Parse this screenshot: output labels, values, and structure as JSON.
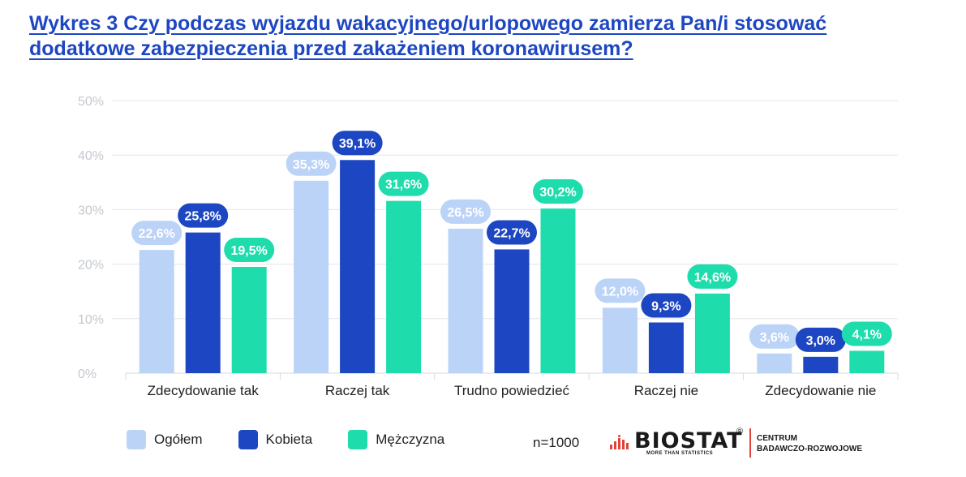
{
  "title": "Wykres 3 Czy podczas wyjazdu wakacyjnego/urlopowego zamierza Pan/i stosować dodatkowe zabezpieczenia przed zakażeniem koronawirusem?",
  "chart_data": {
    "type": "bar",
    "title": "Wykres 3 Czy podczas wyjazdu wakacyjnego/urlopowego zamierza Pan/i stosować dodatkowe zabezpieczenia przed zakażeniem koronawirusem?",
    "xlabel": "",
    "ylabel": "",
    "ylim": [
      0,
      50
    ],
    "yticks": [
      0,
      10,
      20,
      30,
      40,
      50
    ],
    "ytick_labels": [
      "0%",
      "10%",
      "20%",
      "30%",
      "40%",
      "50%"
    ],
    "grid": true,
    "legend_position": "bottom-left",
    "categories": [
      "Zdecydowanie tak",
      "Raczej tak",
      "Trudno powiedzieć",
      "Raczej nie",
      "Zdecydowanie nie"
    ],
    "series": [
      {
        "name": "Ogółem",
        "color": "#bcd3f8",
        "label_color": "#bcd3f8",
        "text_color": "#ffffff",
        "values": [
          22.6,
          35.3,
          26.5,
          12.0,
          3.6
        ],
        "labels": [
          "22,6%",
          "35,3%",
          "26,5%",
          "12,0%",
          "3,6%"
        ]
      },
      {
        "name": "Kobieta",
        "color": "#1d46c3",
        "label_color": "#1d46c3",
        "text_color": "#ffffff",
        "values": [
          25.8,
          39.1,
          22.7,
          9.3,
          3.0
        ],
        "labels": [
          "25,8%",
          "39,1%",
          "22,7%",
          "9,3%",
          "3,0%"
        ]
      },
      {
        "name": "Mężczyzna",
        "color": "#1fdcac",
        "label_color": "#1fdcac",
        "text_color": "#ffffff",
        "values": [
          19.5,
          31.6,
          30.2,
          14.6,
          4.1
        ],
        "labels": [
          "19,5%",
          "31,6%",
          "30,2%",
          "14,6%",
          "4,1%"
        ]
      }
    ]
  },
  "footer": {
    "n_label": "n=1000"
  },
  "logo": {
    "word": "BIOSTAT",
    "registered": "®",
    "tagline": "MORE THAN STATISTICS",
    "center_line1": "CENTRUM",
    "center_line2": "BADAWCZO-ROZWOJOWE",
    "accent": "#e0433a"
  }
}
